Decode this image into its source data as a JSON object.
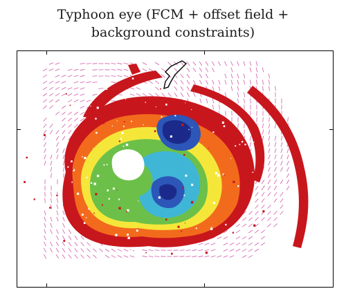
{
  "title": {
    "line1": "Typhoon eye (FCM + offset field +",
    "line2": "background constraints)"
  },
  "image": {
    "subject": "Satellite-derived typhoon cloud intensity field with overlaid motion offset vectors and coastline outline",
    "colors": {
      "vector": "#d05aa8",
      "outer_band": "#c8161d",
      "band_orange": "#f26b1d",
      "band_yellow": "#f5e73a",
      "band_green": "#6cc04a",
      "band_cyan": "#3fb6d6",
      "band_blue": "#2c56b8",
      "band_deep_blue": "#1b2a8a",
      "coastline": "#000000"
    }
  }
}
